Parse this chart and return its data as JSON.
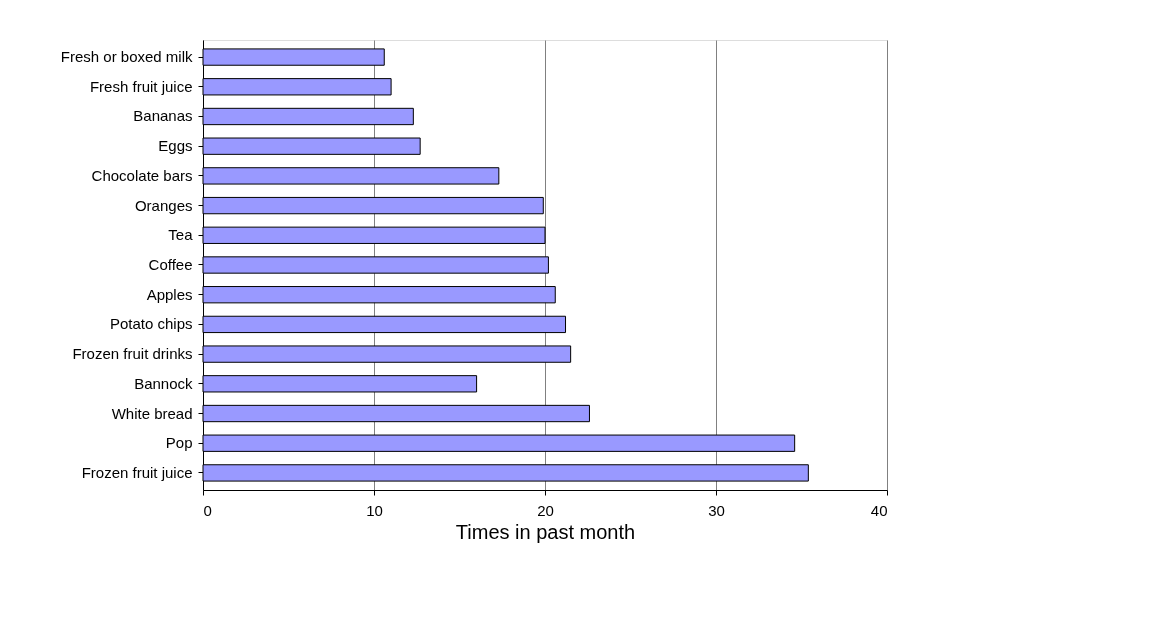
{
  "chart_data": {
    "type": "bar",
    "orientation": "horizontal",
    "xlabel": "Times in past month",
    "categories": [
      "Fresh or boxed milk",
      "Fresh fruit juice",
      "Bananas",
      "Eggs",
      "Chocolate bars",
      "Oranges",
      "Tea",
      "Coffee",
      "Apples",
      "Potato chips",
      "Frozen fruit drinks",
      "Bannock",
      "White bread",
      "Pop",
      "Frozen fruit juice"
    ],
    "values": [
      10.6,
      11.0,
      12.3,
      12.7,
      17.3,
      19.9,
      20.0,
      20.2,
      20.6,
      21.2,
      21.5,
      16.0,
      22.6,
      34.6,
      35.4
    ],
    "color": "#9999ff",
    "xlim": [
      0,
      40
    ],
    "xticks": [
      0,
      10,
      20,
      30,
      40
    ],
    "grid": "x"
  }
}
